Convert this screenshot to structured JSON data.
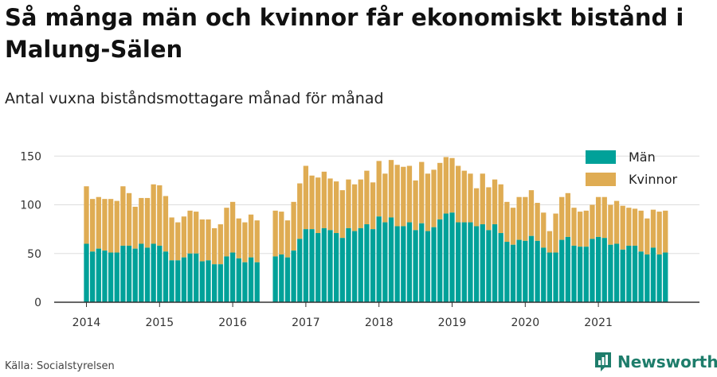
{
  "title": "Så många män och kvinnor får ekonomiskt bistånd i Malung-Sälen",
  "subtitle": "Antal vuxna biståndsmottagare månad för månad",
  "source": "Källa: Socialstyrelsen",
  "brand": {
    "name": "Newsworthy",
    "icon": "newsworthy-logo-icon"
  },
  "colors": {
    "men": "#00a199",
    "women": "#dfac53",
    "grid": "#dddddd",
    "axis": "#333333",
    "brand": "#1e7d6b"
  },
  "chart_data": {
    "type": "bar",
    "stacked": true,
    "start": "2014-01",
    "x_ticks": [
      "2014",
      "2015",
      "2016",
      "2017",
      "2018",
      "2019",
      "2020",
      "2021"
    ],
    "ylim": [
      0,
      160
    ],
    "y_ticks": [
      0,
      50,
      100,
      150
    ],
    "grid": true,
    "legend": "top-right",
    "series": [
      {
        "name": "Män",
        "values": [
          60,
          52,
          55,
          53,
          51,
          51,
          58,
          58,
          55,
          60,
          56,
          60,
          58,
          52,
          43,
          43,
          46,
          50,
          50,
          42,
          43,
          39,
          39,
          47,
          51,
          45,
          41,
          46,
          41,
          null,
          null,
          47,
          49,
          46,
          53,
          65,
          75,
          75,
          71,
          76,
          74,
          71,
          66,
          76,
          73,
          76,
          80,
          75,
          88,
          82,
          87,
          78,
          78,
          82,
          74,
          81,
          73,
          77,
          85,
          91,
          92,
          82,
          82,
          82,
          78,
          80,
          74,
          80,
          71,
          62,
          59,
          64,
          63,
          68,
          63,
          56,
          51,
          51,
          64,
          67,
          58,
          57,
          57,
          65,
          67,
          66,
          59,
          60,
          54,
          58,
          58,
          52,
          49,
          56,
          49,
          51
        ],
        "stack_totals": [
          119,
          106,
          108,
          106,
          106,
          104,
          119,
          112,
          98,
          107,
          107,
          121,
          120,
          109,
          87,
          82,
          88,
          94,
          93,
          85,
          85,
          76,
          80,
          97,
          103,
          86,
          82,
          90,
          84,
          null,
          null,
          94,
          93,
          84,
          103,
          122,
          140,
          130,
          128,
          134,
          127,
          124,
          115,
          126,
          121,
          126,
          135,
          123,
          145,
          132,
          146,
          141,
          139,
          140,
          125,
          144,
          132,
          136,
          143,
          149,
          148,
          140,
          135,
          132,
          117,
          132,
          118,
          126,
          121,
          103,
          97,
          108,
          108,
          115,
          102,
          92,
          73,
          91,
          108,
          112,
          97,
          93,
          94,
          100,
          108,
          108,
          100,
          104,
          99,
          97,
          96,
          94,
          86,
          95,
          93,
          94
        ]
      },
      {
        "name": "Kvinnor",
        "values": [
          59,
          54,
          53,
          53,
          55,
          53,
          61,
          54,
          43,
          47,
          51,
          61,
          62,
          57,
          44,
          39,
          42,
          44,
          43,
          43,
          42,
          37,
          41,
          50,
          52,
          41,
          41,
          44,
          43,
          null,
          null,
          47,
          44,
          38,
          50,
          57,
          65,
          55,
          57,
          58,
          53,
          53,
          49,
          50,
          48,
          50,
          55,
          48,
          57,
          50,
          59,
          63,
          61,
          58,
          51,
          63,
          59,
          59,
          58,
          58,
          56,
          58,
          53,
          50,
          39,
          52,
          44,
          46,
          50,
          41,
          38,
          44,
          45,
          47,
          39,
          36,
          22,
          40,
          44,
          45,
          39,
          36,
          37,
          35,
          41,
          42,
          41,
          44,
          45,
          39,
          38,
          42,
          37,
          39,
          44,
          43
        ]
      }
    ]
  }
}
